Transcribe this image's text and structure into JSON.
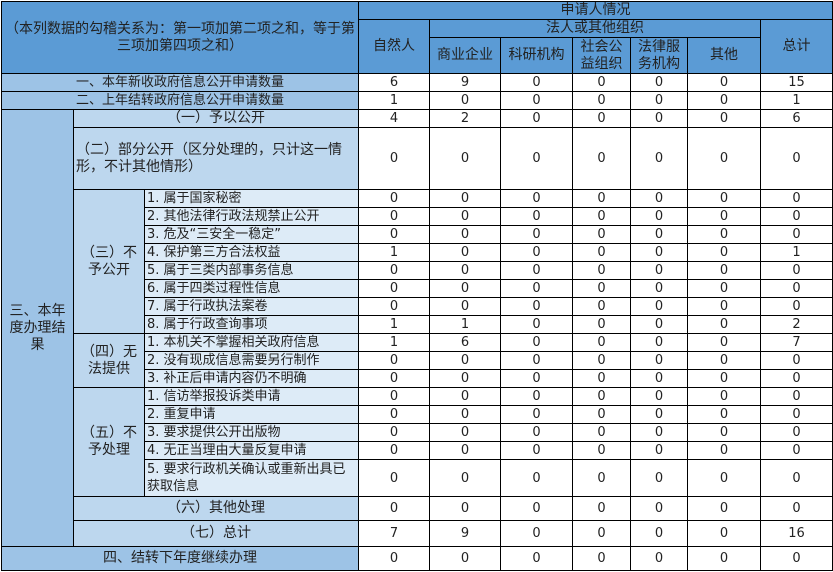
{
  "header": {
    "corner": "（本列数据的勾稽关系为：第一项加第二项之和，等于第三项加第四项之和）",
    "applicant": "申请人情况",
    "natural_person": "自然人",
    "legal_group": "法人或其他组织",
    "legal_cols": [
      "商业企业",
      "科研机构",
      "社会公益组织",
      "法律服务机构",
      "其他"
    ],
    "total": "总计"
  },
  "top_rows": [
    {
      "label": "一、本年新收政府信息公开申请数量",
      "values": [
        "6",
        "9",
        "0",
        "0",
        "0",
        "0",
        "15"
      ]
    },
    {
      "label": "二、上年结转政府信息公开申请数量",
      "values": [
        "1",
        "0",
        "0",
        "0",
        "0",
        "0",
        "1"
      ]
    }
  ],
  "section3": {
    "label": "三、本年度办理结果",
    "items": [
      {
        "label": "（一）予以公开",
        "values": [
          "4",
          "2",
          "0",
          "0",
          "0",
          "0",
          "6"
        ]
      },
      {
        "label": "（二）部分公开（区分处理的，只计这一情形，不计其他情形）",
        "values": [
          "0",
          "0",
          "0",
          "0",
          "0",
          "0",
          "0"
        ]
      },
      {
        "label": "（三）不予公开",
        "children": [
          {
            "label": "1. 属于国家秘密",
            "values": [
              "0",
              "0",
              "0",
              "0",
              "0",
              "0",
              "0"
            ]
          },
          {
            "label": "2. 其他法律行政法规禁止公开",
            "values": [
              "0",
              "0",
              "0",
              "0",
              "0",
              "0",
              "0"
            ]
          },
          {
            "label": "3. 危及“三安全一稳定”",
            "values": [
              "0",
              "0",
              "0",
              "0",
              "0",
              "0",
              "0"
            ]
          },
          {
            "label": "4. 保护第三方合法权益",
            "values": [
              "1",
              "0",
              "0",
              "0",
              "0",
              "0",
              "1"
            ]
          },
          {
            "label": "5. 属于三类内部事务信息",
            "values": [
              "0",
              "0",
              "0",
              "0",
              "0",
              "0",
              "0"
            ]
          },
          {
            "label": "6. 属于四类过程性信息",
            "values": [
              "0",
              "0",
              "0",
              "0",
              "0",
              "0",
              "0"
            ]
          },
          {
            "label": "7. 属于行政执法案卷",
            "values": [
              "0",
              "0",
              "0",
              "0",
              "0",
              "0",
              "0"
            ]
          },
          {
            "label": "8. 属于行政查询事项",
            "values": [
              "1",
              "1",
              "0",
              "0",
              "0",
              "0",
              "2"
            ]
          }
        ]
      },
      {
        "label": "（四）无法提供",
        "children": [
          {
            "label": "1. 本机关不掌握相关政府信息",
            "values": [
              "1",
              "6",
              "0",
              "0",
              "0",
              "0",
              "7"
            ]
          },
          {
            "label": "2. 没有现成信息需要另行制作",
            "values": [
              "0",
              "0",
              "0",
              "0",
              "0",
              "0",
              "0"
            ]
          },
          {
            "label": "3. 补正后申请内容仍不明确",
            "values": [
              "0",
              "0",
              "0",
              "0",
              "0",
              "0",
              "0"
            ]
          }
        ]
      },
      {
        "label": "（五）不予处理",
        "children": [
          {
            "label": "1. 信访举报投诉类申请",
            "values": [
              "0",
              "0",
              "0",
              "0",
              "0",
              "0",
              "0"
            ]
          },
          {
            "label": "2. 重复申请",
            "values": [
              "0",
              "0",
              "0",
              "0",
              "0",
              "0",
              "0"
            ]
          },
          {
            "label": "3. 要求提供公开出版物",
            "values": [
              "0",
              "0",
              "0",
              "0",
              "0",
              "0",
              "0"
            ]
          },
          {
            "label": "4. 无正当理由大量反复申请",
            "values": [
              "0",
              "0",
              "0",
              "0",
              "0",
              "0",
              "0"
            ]
          },
          {
            "label": "5. 要求行政机关确认或重新出具已获取信息",
            "values": [
              "0",
              "0",
              "0",
              "0",
              "0",
              "0",
              "0"
            ]
          }
        ]
      },
      {
        "label": "（六）其他处理",
        "values": [
          "0",
          "0",
          "0",
          "0",
          "0",
          "0",
          "0"
        ]
      },
      {
        "label": "（七）总计",
        "values": [
          "7",
          "9",
          "0",
          "0",
          "0",
          "0",
          "16"
        ]
      }
    ]
  },
  "bottom_row": {
    "label": "四、结转下年度继续办理",
    "values": [
      "0",
      "0",
      "0",
      "0",
      "0",
      "0",
      "0"
    ]
  },
  "colors": {
    "header": "#5b9bd5",
    "level1": "#9dc3e6",
    "level2": "#bdd7ee",
    "level3": "#ddebf7"
  }
}
